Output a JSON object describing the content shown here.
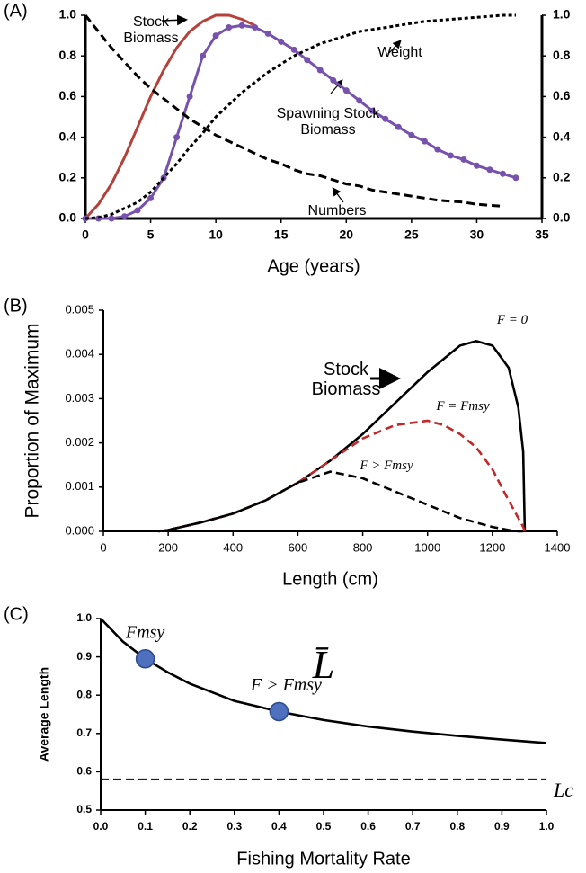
{
  "chart_data": [
    {
      "type": "line",
      "panel_label": "(A)",
      "x_label": "Age (years)",
      "x": [
        0,
        1,
        2,
        3,
        4,
        5,
        6,
        7,
        8,
        9,
        10,
        11,
        12,
        13,
        14,
        15,
        16,
        17,
        18,
        19,
        20,
        21,
        22,
        23,
        24,
        25,
        26,
        27,
        28,
        29,
        30,
        31,
        32,
        33
      ],
      "series": [
        {
          "name": "Stock Biomass",
          "color": "#b5413b",
          "line_style": "solid",
          "markers": false,
          "values": [
            0,
            0.07,
            0.17,
            0.3,
            0.45,
            0.6,
            0.73,
            0.84,
            0.92,
            0.97,
            1.0,
            1.0,
            0.98,
            0.95,
            null,
            null,
            null,
            null,
            null,
            null,
            null,
            null,
            null,
            null,
            null,
            null,
            null,
            null,
            null,
            null,
            null,
            null,
            null,
            null
          ]
        },
        {
          "name": "Spawning Stock Biomass",
          "color": "#7652ad",
          "line_style": "solid",
          "markers": true,
          "values": [
            0,
            0,
            0,
            0.01,
            0.04,
            0.1,
            0.2,
            0.4,
            0.6,
            0.8,
            0.9,
            0.94,
            0.95,
            0.94,
            0.91,
            0.87,
            0.83,
            0.78,
            0.73,
            0.68,
            0.63,
            0.58,
            0.53,
            0.49,
            0.45,
            0.41,
            0.38,
            0.34,
            0.31,
            0.29,
            0.26,
            0.24,
            0.22,
            0.2
          ]
        },
        {
          "name": "Weight",
          "color": "#000000",
          "line_style": "dotted",
          "markers": false,
          "values": [
            0,
            0.005,
            0.02,
            0.05,
            0.08,
            0.13,
            0.2,
            0.27,
            0.35,
            0.42,
            0.5,
            0.56,
            0.62,
            0.67,
            0.72,
            0.76,
            0.8,
            0.83,
            0.86,
            0.88,
            0.9,
            0.92,
            0.93,
            0.94,
            0.95,
            0.96,
            0.97,
            0.975,
            0.98,
            0.985,
            0.99,
            0.995,
            1.0,
            1.0
          ]
        },
        {
          "name": "Numbers",
          "color": "#000000",
          "line_style": "dashed",
          "markers": false,
          "values": [
            1,
            0.92,
            0.84,
            0.77,
            0.7,
            0.64,
            0.59,
            0.54,
            0.49,
            0.45,
            0.41,
            0.38,
            0.35,
            0.32,
            0.29,
            0.27,
            0.24,
            0.22,
            0.21,
            0.19,
            0.17,
            0.16,
            0.14,
            0.13,
            0.12,
            0.11,
            0.1,
            0.09,
            0.085,
            0.08,
            0.07,
            0.065,
            0.06,
            null
          ]
        }
      ],
      "xlim": [
        0,
        35
      ],
      "xticks": [
        0,
        5,
        10,
        15,
        20,
        25,
        30,
        35
      ],
      "ylim": [
        0,
        1
      ],
      "yticks": [
        {
          "value": 0,
          "label": "0.0"
        },
        0.2,
        0.4,
        0.6,
        0.8,
        {
          "value": 1,
          "label": "1.0"
        }
      ],
      "y2lim": [
        0,
        1
      ],
      "y2ticks": [
        {
          "value": 0,
          "label": "0.0"
        },
        0.2,
        0.4,
        0.6,
        0.8,
        {
          "value": 1,
          "label": "1.0"
        }
      ]
    },
    {
      "type": "line",
      "panel_label": "(B)",
      "x_label": "Length (cm)",
      "y_label": "Proportion of Maximum",
      "annotations": [
        "Stock Biomass"
      ],
      "x": [
        170,
        200,
        300,
        400,
        500,
        600,
        700,
        800,
        900,
        1000,
        1050,
        1100,
        1150,
        1200,
        1250,
        1280,
        1295,
        1300
      ],
      "series": [
        {
          "name": "F = 0",
          "color": "#000000",
          "line_style": "solid",
          "markers": false,
          "values": [
            0,
            3e-05,
            0.0002,
            0.0004,
            0.0007,
            0.0011,
            0.0016,
            0.0022,
            0.0029,
            0.0036,
            0.0039,
            0.0042,
            0.0043,
            0.0042,
            0.0037,
            0.0028,
            0.0018,
            0
          ]
        },
        {
          "name": "F = Fmsy",
          "color": "#c0282a",
          "line_style": "dashed",
          "markers": false,
          "values": [
            0,
            3e-05,
            0.0002,
            0.0004,
            0.0007,
            0.0011,
            0.0016,
            0.0021,
            0.0024,
            0.0025,
            0.0024,
            0.0022,
            0.0019,
            0.0014,
            0.0007,
            0.0003,
            0.0001,
            0
          ]
        },
        {
          "name": "F > Fmsy",
          "color": "#000000",
          "line_style": "dashed",
          "markers": false,
          "values": [
            0,
            3e-05,
            0.0002,
            0.0004,
            0.0007,
            0.0011,
            0.00135,
            0.0012,
            0.0009,
            0.0006,
            0.00045,
            0.0003,
            0.0002,
            0.0001,
            3e-05,
            0,
            0,
            0
          ]
        }
      ],
      "xlim": [
        0,
        1400
      ],
      "xticks": [
        0,
        200,
        400,
        600,
        800,
        1000,
        1200,
        1400
      ],
      "ylim": [
        0,
        0.005
      ],
      "yticks": [
        {
          "value": 0,
          "label": "0.000"
        },
        0.001,
        0.002,
        0.003,
        0.004,
        0.005
      ]
    },
    {
      "type": "line",
      "panel_label": "(C)",
      "x_label": "Fishing Mortality Rate",
      "y_label": "Average Length",
      "x": [
        0,
        0.05,
        0.1,
        0.15,
        0.2,
        0.3,
        0.4,
        0.5,
        0.6,
        0.7,
        0.8,
        0.9,
        1.0
      ],
      "series": [
        {
          "name": "L̄",
          "color": "#000000",
          "line_style": "solid",
          "markers": false,
          "values": [
            1.0,
            0.94,
            0.895,
            0.86,
            0.83,
            0.785,
            0.757,
            0.735,
            0.718,
            0.705,
            0.694,
            0.684,
            0.675
          ]
        }
      ],
      "points": [
        {
          "label": "Fmsy",
          "x": 0.1,
          "y": 0.895,
          "color": "#4f6fbf"
        },
        {
          "label": "F > Fmsy",
          "x": 0.4,
          "y": 0.757,
          "color": "#4f6fbf"
        }
      ],
      "hline": {
        "label": "Lc",
        "y": 0.58,
        "line_style": "dashed"
      },
      "xlim": [
        0,
        1
      ],
      "xticks": [
        {
          "value": 0,
          "label": "0.0"
        },
        0.1,
        0.2,
        0.3,
        0.4,
        0.5,
        0.6,
        0.7,
        0.8,
        0.9,
        {
          "value": 1,
          "label": "1.0"
        }
      ],
      "ylim": [
        0.5,
        1
      ],
      "yticks": [
        0.5,
        0.6,
        0.7,
        0.8,
        0.9,
        {
          "value": 1,
          "label": "1.0"
        }
      ]
    }
  ]
}
